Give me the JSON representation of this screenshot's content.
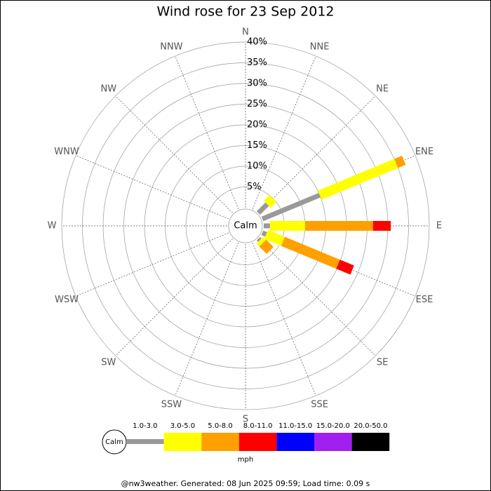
{
  "chart_data": {
    "type": "windrose",
    "title": "Wind rose for 23 Sep 2012",
    "calm_label": "Calm",
    "unit": "mph",
    "footer": "@nw3weather. Generated: 08 Jun 2025 09:59; Load time: 0.09 s",
    "categories": [
      "N",
      "NNE",
      "NE",
      "ENE",
      "E",
      "ESE",
      "SE",
      "SSE",
      "S",
      "SSW",
      "SW",
      "WSW",
      "W",
      "WNW",
      "NW",
      "NNW"
    ],
    "ylim": [
      0,
      40
    ],
    "yticks": [
      {
        "value": 5,
        "label": "5%"
      },
      {
        "value": 10,
        "label": "10%"
      },
      {
        "value": 15,
        "label": "15%"
      },
      {
        "value": 20,
        "label": "20%"
      },
      {
        "value": 25,
        "label": "25%"
      },
      {
        "value": 30,
        "label": "30%"
      },
      {
        "value": 35,
        "label": "35%"
      },
      {
        "value": 40,
        "label": "40%"
      }
    ],
    "grid": true,
    "series": [
      {
        "name": "1.0-3.0",
        "color": "#999999",
        "values": [
          0,
          0,
          3,
          15,
          1.5,
          1,
          0.5,
          0,
          0,
          0,
          0,
          0,
          0,
          0,
          0,
          0
        ]
      },
      {
        "name": "3.0-5.0",
        "color": "#ffff00",
        "values": [
          0,
          0,
          2,
          20,
          8.5,
          4.4,
          1,
          0,
          0,
          0,
          0,
          0,
          0,
          0,
          0,
          0
        ]
      },
      {
        "name": "5.0-8.0",
        "color": "#ffa000",
        "values": [
          0,
          0,
          0,
          2,
          16.4,
          14.4,
          2.5,
          0,
          0,
          0,
          0,
          0,
          0,
          0,
          0,
          0
        ]
      },
      {
        "name": "8.0-11.0",
        "color": "#ff0000",
        "values": [
          0,
          0,
          0,
          0,
          4.3,
          3.7,
          0,
          0,
          0,
          0,
          0,
          0,
          0,
          0,
          0,
          0
        ]
      },
      {
        "name": "11.0-15.0",
        "color": "#0000ff",
        "values": [
          0,
          0,
          0,
          0,
          0,
          0,
          0,
          0,
          0,
          0,
          0,
          0,
          0,
          0,
          0,
          0
        ]
      },
      {
        "name": "15.0-20.0",
        "color": "#a020f0",
        "values": [
          0,
          0,
          0,
          0,
          0,
          0,
          0,
          0,
          0,
          0,
          0,
          0,
          0,
          0,
          0,
          0
        ]
      },
      {
        "name": "20.0-50.0",
        "color": "#000000",
        "values": [
          0,
          0,
          0,
          0,
          0,
          0,
          0,
          0,
          0,
          0,
          0,
          0,
          0,
          0,
          0,
          0
        ]
      }
    ]
  }
}
